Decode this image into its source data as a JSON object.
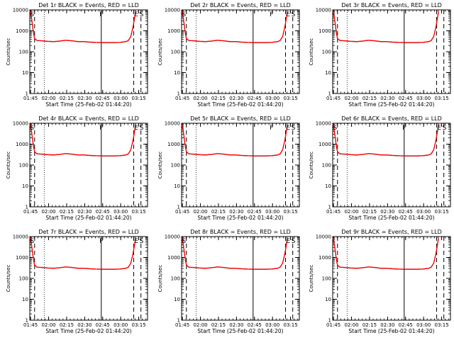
{
  "chart_data": [
    {
      "id": "det-1r",
      "title": "Det 1r BLACK = Events, RED = LLD",
      "ylabel": "Counts/sec",
      "xlabel": "Start Time (25-Feb-02 01:44:20)",
      "markers": [
        {
          "x": 1.9,
          "text": "S"
        },
        {
          "x": 59.5,
          "text": "F"
        },
        {
          "x": 88.6,
          "text": "E"
        },
        {
          "x": 93.0,
          "text": "S"
        }
      ]
    },
    {
      "id": "det-2r",
      "title": "Det 2r BLACK = Events, RED = LLD",
      "ylabel": "Counts/sec",
      "xlabel": "Start Time (25-Feb-02 01:44:20)",
      "markers": [
        {
          "x": 1.9,
          "text": "S"
        },
        {
          "x": 74.8,
          "text": "F"
        },
        {
          "x": 88.6,
          "text": "E"
        },
        {
          "x": 93.0,
          "text": "S"
        }
      ]
    },
    {
      "id": "det-3r",
      "title": "Det 3r BLACK = Events, RED = LLD",
      "ylabel": "Counts/sec",
      "xlabel": "Start Time (25-Feb-02 01:44:20)",
      "markers": []
    },
    {
      "id": "det-4r",
      "title": "Det 4r BLACK = Events, RED = LLD",
      "ylabel": "Counts/sec",
      "xlabel": "Start Time (25-Feb-02 01:44:20)",
      "markers": [
        {
          "x": 1.9,
          "text": "S"
        },
        {
          "x": 59.5,
          "text": "F"
        },
        {
          "x": 88.6,
          "text": "E"
        },
        {
          "x": 93.0,
          "text": "S"
        }
      ]
    },
    {
      "id": "det-5r",
      "title": "Det 5r BLACK = Events, RED = LLD",
      "ylabel": "Counts/sec",
      "xlabel": "Start Time (25-Feb-02 01:44:20)",
      "markers": [
        {
          "x": 74.8,
          "text": "F"
        },
        {
          "x": 88.6,
          "text": "E"
        },
        {
          "x": 93.0,
          "text": "S"
        }
      ]
    },
    {
      "id": "det-6r",
      "title": "Det 6r BLACK = Events, RED = LLD",
      "ylabel": "Counts/sec",
      "xlabel": "Start Time (25-Feb-02 01:44:20)",
      "markers": [
        {
          "x": 1.9,
          "text": "S"
        },
        {
          "x": 59.5,
          "text": "F"
        },
        {
          "x": 88.6,
          "text": "E"
        },
        {
          "x": 93.0,
          "text": "S"
        }
      ]
    },
    {
      "id": "det-7r",
      "title": "Det 7r BLACK = Events, RED = LLD",
      "ylabel": "Counts/sec",
      "xlabel": "Start Time (25-Feb-02 01:44:20)",
      "markers": [
        {
          "x": 1.9,
          "text": "S"
        },
        {
          "x": 59.5,
          "text": "F"
        },
        {
          "x": 88.6,
          "text": "E"
        },
        {
          "x": 93.0,
          "text": "S"
        }
      ]
    },
    {
      "id": "det-8r",
      "title": "Det 8r BLACK = Events, RED = LLD",
      "ylabel": "Counts/sec",
      "xlabel": "Start Time (25-Feb-02 01:44:20)",
      "markers": [
        {
          "x": 1.9,
          "text": "S"
        },
        {
          "x": 88.6,
          "text": "E"
        },
        {
          "x": 93.0,
          "text": "S"
        }
      ]
    },
    {
      "id": "det-9r",
      "title": "Det 9r BLACK = Events, RED = LLD",
      "ylabel": "Counts/sec",
      "xlabel": "Start Time (25-Feb-02 01:44:20)",
      "markers": []
    }
  ],
  "common": {
    "type": "line",
    "x_unit": "minutes after 01:44:20",
    "xlim": [
      0,
      98
    ],
    "yscale": "log",
    "ylim": [
      1,
      10000
    ],
    "xticks": [
      {
        "v": 0.67,
        "label": "01:45"
      },
      {
        "v": 15.67,
        "label": "02:00"
      },
      {
        "v": 30.67,
        "label": "02:15"
      },
      {
        "v": 45.67,
        "label": "02:30"
      },
      {
        "v": 60.67,
        "label": "02:45"
      },
      {
        "v": 75.67,
        "label": "03:00"
      },
      {
        "v": 90.67,
        "label": "03:15"
      }
    ],
    "yticks": [
      {
        "v": 1,
        "label": "1"
      },
      {
        "v": 10,
        "label": "10"
      },
      {
        "v": 100,
        "label": "100"
      },
      {
        "v": 1000,
        "label": "1000"
      },
      {
        "v": 10000,
        "label": "10000"
      }
    ],
    "vlines": [
      {
        "x": 4.0,
        "style": "dashed"
      },
      {
        "x": 12.0,
        "style": "dotted"
      },
      {
        "x": 59.5,
        "style": "solid"
      },
      {
        "x": 86.5,
        "style": "dashed"
      },
      {
        "x": 92.5,
        "style": "dashed"
      }
    ],
    "series": [
      {
        "name": "Events",
        "color": "#000000",
        "x": [
          0,
          1,
          2,
          3,
          4,
          6,
          10,
          15,
          20,
          25,
          30,
          35,
          40,
          45,
          50,
          55,
          60,
          65,
          70,
          75,
          80,
          82,
          84,
          85,
          86,
          87,
          88
        ],
        "y": [
          8000,
          5500,
          2200,
          800,
          420,
          340,
          330,
          310,
          300,
          320,
          350,
          330,
          300,
          300,
          285,
          275,
          270,
          270,
          270,
          275,
          300,
          340,
          520,
          900,
          1600,
          3500,
          8000
        ]
      },
      {
        "name": "LLD",
        "color": "#ff0000",
        "x": [
          0,
          1,
          2,
          3,
          4,
          6,
          10,
          15,
          20,
          25,
          30,
          35,
          40,
          45,
          50,
          55,
          60,
          65,
          70,
          75,
          80,
          82,
          84,
          85,
          86,
          87,
          88
        ],
        "y": [
          9000,
          6000,
          2400,
          850,
          430,
          345,
          335,
          315,
          305,
          325,
          355,
          335,
          305,
          305,
          290,
          280,
          275,
          275,
          275,
          280,
          305,
          345,
          530,
          920,
          1650,
          3600,
          8500
        ]
      }
    ]
  }
}
